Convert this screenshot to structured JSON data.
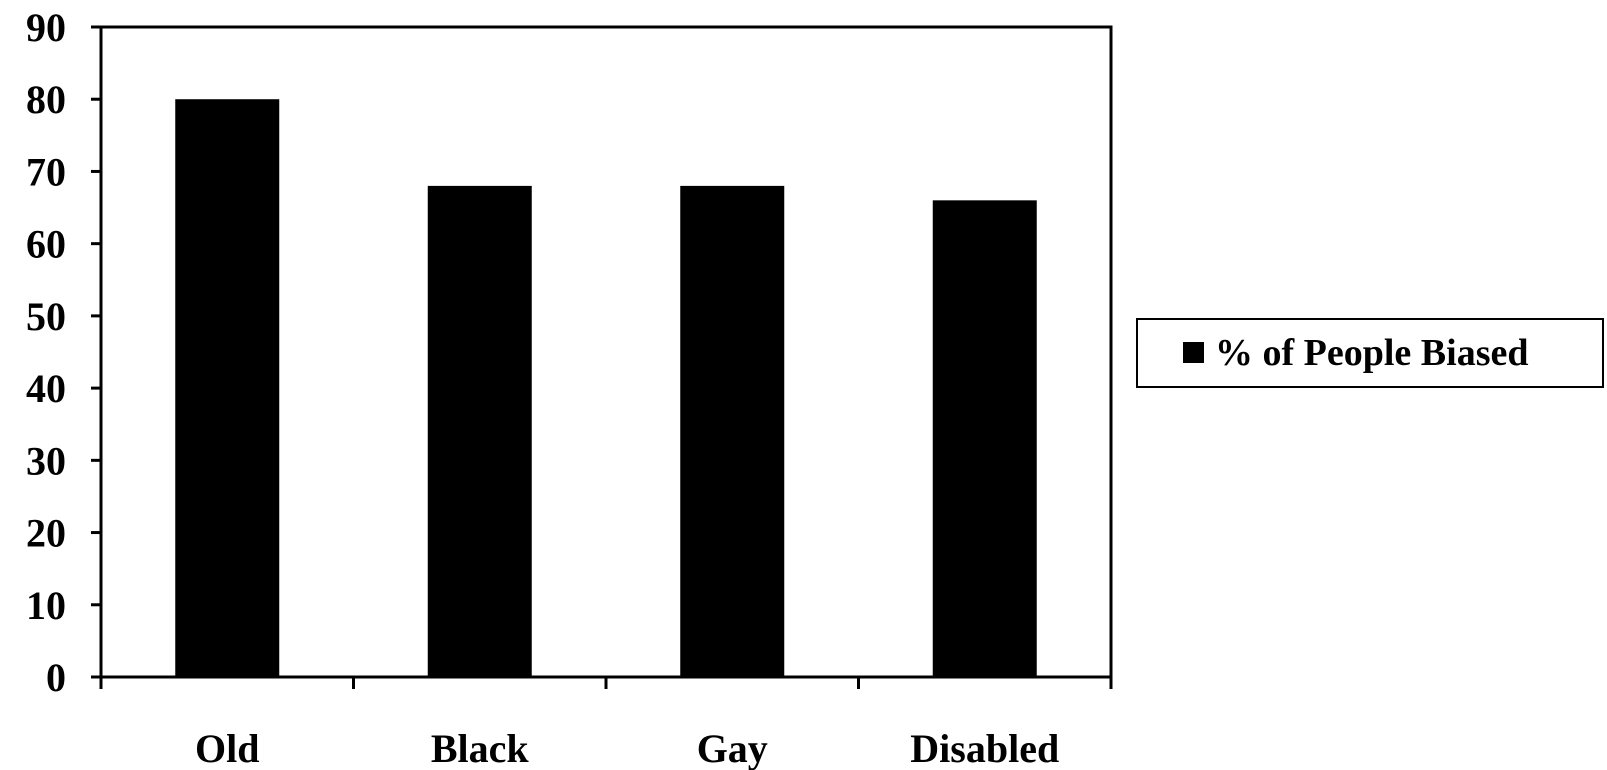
{
  "chart_data": {
    "type": "bar",
    "categories": [
      "Old",
      "Black",
      "Gay",
      "Disabled"
    ],
    "series": [
      {
        "name": "% of People Biased",
        "values": [
          80,
          68,
          68,
          66
        ]
      }
    ],
    "ylim": [
      0,
      90
    ],
    "yticks": [
      0,
      10,
      20,
      30,
      40,
      50,
      60,
      70,
      80,
      90
    ],
    "grid": false,
    "legend": "right",
    "bar_color": "#000000"
  }
}
